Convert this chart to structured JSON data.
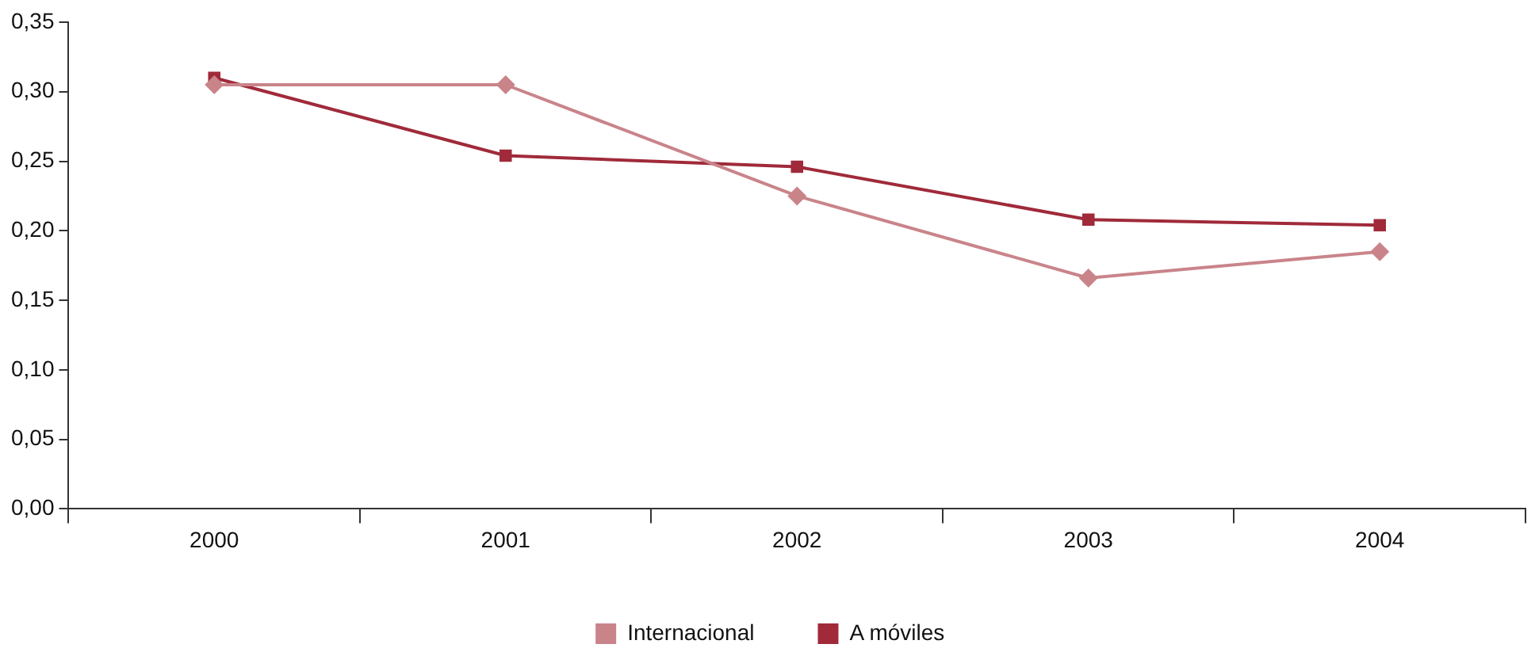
{
  "chart_data": {
    "type": "line",
    "categories": [
      "2000",
      "2001",
      "2002",
      "2003",
      "2004"
    ],
    "series": [
      {
        "name": "Internacional",
        "color": "#c9848a",
        "marker": "diamond",
        "values": [
          0.305,
          0.305,
          0.225,
          0.166,
          0.185
        ]
      },
      {
        "name": "A móviles",
        "color": "#a02a3a",
        "marker": "square",
        "values": [
          0.31,
          0.254,
          0.246,
          0.208,
          0.204
        ]
      }
    ],
    "ylim": [
      0,
      0.35
    ],
    "yticks": [
      {
        "value": 0,
        "label": "0,00"
      },
      {
        "value": 0.05,
        "label": "0,05"
      },
      {
        "value": 0.1,
        "label": "0,10"
      },
      {
        "value": 0.15,
        "label": "0,15"
      },
      {
        "value": 0.2,
        "label": "0,20"
      },
      {
        "value": 0.25,
        "label": "0,25"
      },
      {
        "value": 0.3,
        "label": "0,30"
      },
      {
        "value": 0.35,
        "label": "0,35"
      }
    ],
    "grid": false,
    "legend": "bottom",
    "line_style": "solid"
  }
}
